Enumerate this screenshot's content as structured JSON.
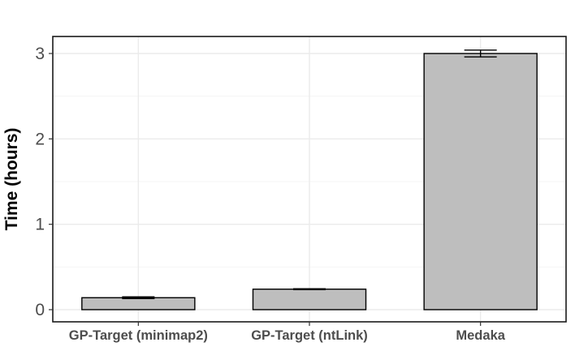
{
  "chart_data": {
    "type": "bar",
    "categories": [
      "GP-Target (minimap2)",
      "GP-Target (ntLink)",
      "Medaka"
    ],
    "values": [
      0.14,
      0.24,
      3.0
    ],
    "error_low": [
      0.13,
      0.235,
      2.96
    ],
    "error_high": [
      0.15,
      0.245,
      3.04
    ],
    "title": "",
    "xlabel": "",
    "ylabel": "Time (hours)",
    "ylim": [
      -0.12,
      3.2
    ],
    "yticks": [
      0,
      1,
      2,
      3
    ],
    "ytick_labels": [
      "0",
      "1",
      "2",
      "3"
    ],
    "grid": true,
    "legend": "none",
    "colors": {
      "bar_fill": "#bebebe",
      "bar_stroke": "#000000",
      "grid_major": "#ebebeb",
      "grid_minor": "#f5f5f5",
      "panel_border": "#1a1a1a",
      "tick_text": "#4d4d4d"
    }
  }
}
